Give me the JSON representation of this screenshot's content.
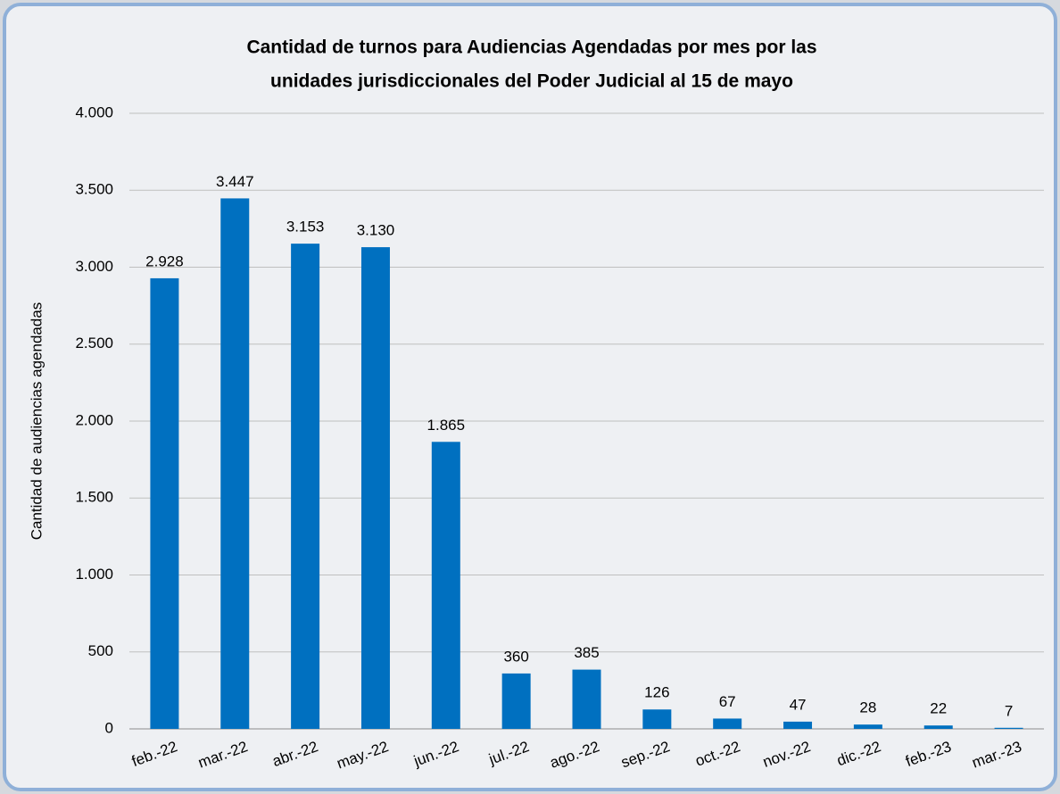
{
  "chart_data": {
    "type": "bar",
    "title": [
      "Cantidad de turnos para Audiencias Agendadas por mes por las",
      "unidades jurisdiccionales del Poder Judicial al 15 de mayo"
    ],
    "y_label": "Cantidad de audiencias agendadas",
    "categories": [
      "feb.-22",
      "mar.-22",
      "abr.-22",
      "may.-22",
      "jun.-22",
      "jul.-22",
      "ago.-22",
      "sep.-22",
      "oct.-22",
      "nov.-22",
      "dic.-22",
      "feb.-23",
      "mar.-23"
    ],
    "values": [
      2928,
      3447,
      3153,
      3130,
      1865,
      360,
      385,
      126,
      67,
      47,
      28,
      22,
      7
    ],
    "value_labels": [
      "2.928",
      "3.447",
      "3.153",
      "3.130",
      "1.865",
      "360",
      "385",
      "126",
      "67",
      "47",
      "28",
      "22",
      "7"
    ],
    "color": "#0070c0",
    "ylim": [
      0,
      4000
    ],
    "yticks": [
      0,
      500,
      {
        "value": 1000,
        "label": "1.000"
      },
      {
        "value": 1500,
        "label": "1.500"
      },
      {
        "value": 2000,
        "label": "2.000"
      },
      {
        "value": 2500,
        "label": "2.500"
      },
      {
        "value": 3000,
        "label": "3.000"
      },
      {
        "value": 3500,
        "label": "3.500"
      },
      {
        "value": 4000,
        "label": "4.000"
      }
    ],
    "grid": true
  }
}
